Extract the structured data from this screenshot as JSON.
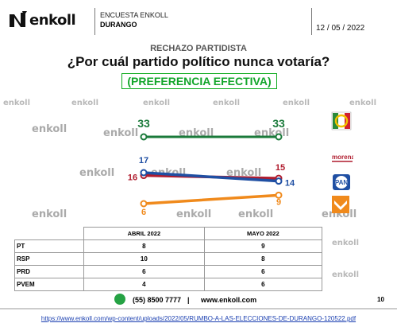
{
  "header": {
    "brand": "enkoll",
    "survey_line1": "ENCUESTA ENKOLL",
    "survey_line2": "DURANGO",
    "date": "12 / 05 / 2022"
  },
  "subtitle": "RECHAZO PARTIDISTA",
  "question": "¿Por cuál partido político nunca votaría?",
  "highlight": "(PREFERENCIA EFECTIVA)",
  "watermark": "enkoll",
  "chart_data": {
    "type": "line",
    "x": [
      "ABRIL 2022",
      "MAYO 2022"
    ],
    "series": [
      {
        "name": "PRI-PRD",
        "values": [
          33,
          33
        ],
        "color": "#1a7a3a"
      },
      {
        "name": "MORENA",
        "values": [
          16,
          15
        ],
        "color": "#b01c2e"
      },
      {
        "name": "PAN",
        "values": [
          17,
          14
        ],
        "color": "#1f4fa3"
      },
      {
        "name": "MC",
        "values": [
          6,
          9
        ],
        "color": "#f08a1c"
      }
    ],
    "party_logos": [
      "PRI-PRD",
      "morena",
      "PAN",
      "MC"
    ]
  },
  "table": {
    "headers": [
      "",
      "ABRIL 2022",
      "MAYO 2022"
    ],
    "rows": [
      {
        "party": "PT",
        "v1": "8",
        "v2": "9"
      },
      {
        "party": "RSP",
        "v1": "10",
        "v2": "8"
      },
      {
        "party": "PRD",
        "v1": "6",
        "v2": "6"
      },
      {
        "party": "PVEM",
        "v1": "4",
        "v2": "6"
      }
    ]
  },
  "footer": {
    "phone": "(55) 8500 7777",
    "separator": "|",
    "website": "www.enkoll.com",
    "page": "10"
  },
  "source_url": "https://www.enkoll.com/wp-content/uploads/2022/05/RUMBO-A-LAS-ELECCIONES-DE-DURANGO-120522.pdf"
}
